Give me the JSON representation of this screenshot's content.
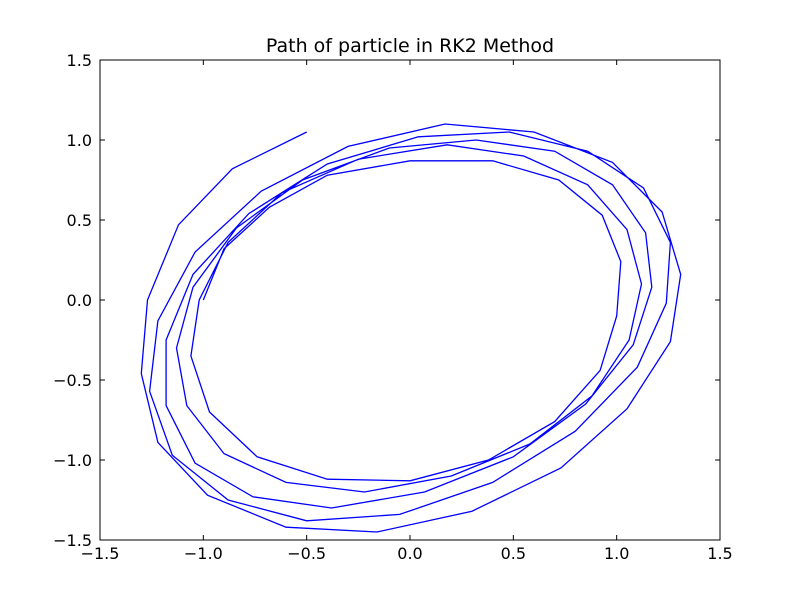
{
  "chart_data": {
    "type": "line",
    "title": "Path of particle in RK2 Method",
    "xlabel": "",
    "ylabel": "",
    "xlim": [
      -1.5,
      1.5
    ],
    "ylim": [
      -1.5,
      1.5
    ],
    "xticks": [
      "−1.5",
      "−1.0",
      "−0.5",
      "0.0",
      "0.5",
      "1.0",
      "1.5"
    ],
    "yticks": [
      "−1.5",
      "−1.0",
      "−0.5",
      "0.0",
      "0.5",
      "1.0",
      "1.5"
    ],
    "grid": false,
    "legend": false,
    "series": [
      {
        "color": "#0000ff",
        "x": [
          -1.0,
          -0.9,
          -0.68,
          -0.4,
          0.0,
          0.4,
          0.72,
          0.93,
          1.02,
          1.0,
          0.92,
          0.7,
          0.38,
          0.0,
          -0.4,
          -0.74,
          -0.97,
          -1.06,
          -1.02,
          -0.88,
          -0.62,
          -0.25,
          0.18,
          0.55,
          0.86,
          1.05,
          1.12,
          1.06,
          0.88,
          0.58,
          0.2,
          -0.22,
          -0.6,
          -0.9,
          -1.08,
          -1.13,
          -1.05,
          -0.84,
          -0.52,
          -0.1,
          0.32,
          0.7,
          0.98,
          1.14,
          1.17,
          1.08,
          0.85,
          0.5,
          0.07,
          -0.38,
          -0.76,
          -1.04,
          -1.18,
          -1.18,
          -1.05,
          -0.78,
          -0.4,
          0.04,
          0.48,
          0.86,
          1.13,
          1.26,
          1.24,
          1.1,
          0.8,
          0.4,
          -0.05,
          -0.5,
          -0.88,
          -1.15,
          -1.26,
          -1.22,
          -1.04,
          -0.72,
          -0.3,
          0.17,
          0.6,
          0.98,
          1.22,
          1.31,
          1.26,
          1.05,
          0.73,
          0.3,
          -0.16,
          -0.6,
          -0.98,
          -1.22,
          -1.3,
          -1.27,
          -1.12,
          -0.86,
          -0.5
        ],
        "y": [
          0.0,
          0.32,
          0.58,
          0.78,
          0.87,
          0.87,
          0.75,
          0.53,
          0.24,
          -0.1,
          -0.44,
          -0.76,
          -1.0,
          -1.13,
          -1.12,
          -0.98,
          -0.7,
          -0.35,
          0.0,
          0.36,
          0.67,
          0.88,
          0.97,
          0.9,
          0.72,
          0.44,
          0.1,
          -0.25,
          -0.6,
          -0.9,
          -1.1,
          -1.2,
          -1.14,
          -0.96,
          -0.66,
          -0.3,
          0.08,
          0.45,
          0.75,
          0.95,
          1.0,
          0.93,
          0.72,
          0.42,
          0.08,
          -0.28,
          -0.65,
          -0.98,
          -1.2,
          -1.3,
          -1.23,
          -1.02,
          -0.66,
          -0.25,
          0.16,
          0.54,
          0.85,
          1.02,
          1.05,
          0.93,
          0.7,
          0.36,
          -0.02,
          -0.42,
          -0.82,
          -1.14,
          -1.34,
          -1.38,
          -1.25,
          -0.97,
          -0.57,
          -0.13,
          0.3,
          0.68,
          0.96,
          1.1,
          1.05,
          0.86,
          0.55,
          0.16,
          -0.26,
          -0.68,
          -1.05,
          -1.32,
          -1.45,
          -1.42,
          -1.22,
          -0.89,
          -0.46,
          0.0,
          0.47,
          0.82,
          1.05
        ]
      }
    ]
  }
}
